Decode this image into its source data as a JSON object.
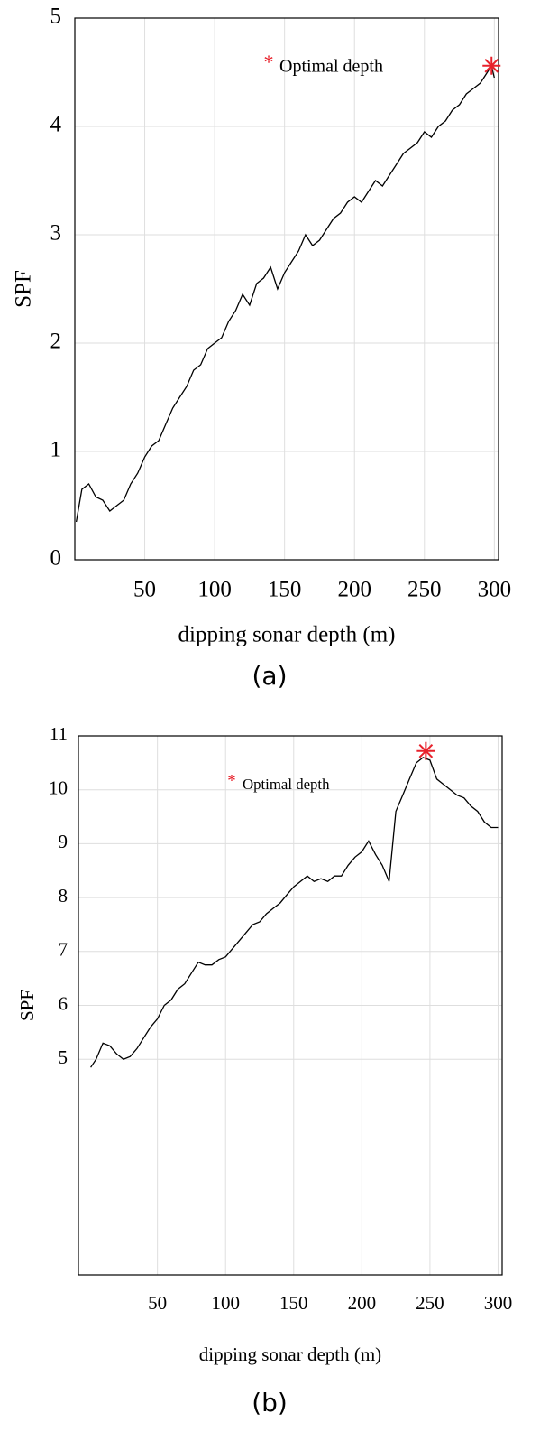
{
  "chart_data": [
    {
      "type": "line",
      "panel": "(a)",
      "xlabel": "dipping sonar depth (m)",
      "ylabel": "SPF",
      "grid": true,
      "xlim": [
        0,
        303
      ],
      "xticks": [
        50,
        100,
        150,
        200,
        250,
        300
      ],
      "ylim": [
        0,
        5
      ],
      "yticks": [
        0,
        1,
        2,
        3,
        4,
        5
      ],
      "legend": "upper right",
      "series": [
        {
          "name": "SPF",
          "color": "#000000",
          "x": [
            1,
            5,
            10,
            15,
            20,
            25,
            30,
            35,
            40,
            45,
            50,
            55,
            60,
            65,
            70,
            75,
            80,
            85,
            90,
            95,
            100,
            105,
            110,
            115,
            120,
            125,
            130,
            135,
            140,
            145,
            150,
            155,
            160,
            165,
            170,
            175,
            180,
            185,
            190,
            195,
            200,
            205,
            210,
            215,
            220,
            225,
            230,
            235,
            240,
            245,
            250,
            255,
            260,
            265,
            270,
            275,
            280,
            285,
            290,
            295,
            298,
            300
          ],
          "values": [
            0.35,
            0.65,
            0.7,
            0.58,
            0.55,
            0.45,
            0.5,
            0.55,
            0.7,
            0.8,
            0.95,
            1.05,
            1.1,
            1.25,
            1.4,
            1.5,
            1.6,
            1.75,
            1.8,
            1.95,
            2.0,
            2.05,
            2.2,
            2.3,
            2.45,
            2.35,
            2.55,
            2.6,
            2.7,
            2.5,
            2.65,
            2.75,
            2.85,
            3.0,
            2.9,
            2.95,
            3.05,
            3.15,
            3.2,
            3.3,
            3.35,
            3.3,
            3.4,
            3.5,
            3.45,
            3.55,
            3.65,
            3.75,
            3.8,
            3.85,
            3.95,
            3.9,
            4.0,
            4.05,
            4.15,
            4.2,
            4.3,
            4.35,
            4.4,
            4.5,
            4.56,
            4.45
          ]
        },
        {
          "name": "Optimal depth",
          "color": "#e8212b",
          "marker": "asterisk",
          "x": [
            298
          ],
          "values": [
            4.56
          ]
        }
      ]
    },
    {
      "type": "line",
      "panel": "(b)",
      "xlabel": "dipping sonar depth (m)",
      "ylabel": "SPF",
      "grid": true,
      "xlim": [
        -8,
        303
      ],
      "xticks": [
        50,
        100,
        150,
        200,
        250,
        300
      ],
      "ylim": [
        1,
        11
      ],
      "yticks": [
        5,
        6,
        7,
        8,
        9,
        10,
        11
      ],
      "legend": "upper center",
      "series": [
        {
          "name": "SPF",
          "color": "#000000",
          "x": [
            1,
            5,
            10,
            15,
            20,
            25,
            30,
            35,
            40,
            45,
            50,
            55,
            60,
            65,
            70,
            75,
            80,
            85,
            90,
            95,
            100,
            105,
            110,
            115,
            120,
            125,
            130,
            135,
            140,
            145,
            150,
            155,
            160,
            165,
            170,
            175,
            180,
            185,
            190,
            195,
            200,
            205,
            210,
            215,
            220,
            225,
            230,
            235,
            240,
            245,
            250,
            255,
            260,
            265,
            270,
            275,
            280,
            285,
            290,
            295,
            300
          ],
          "values": [
            4.85,
            5.0,
            5.3,
            5.25,
            5.1,
            5.0,
            5.05,
            5.2,
            5.4,
            5.6,
            5.75,
            6.0,
            6.1,
            6.3,
            6.4,
            6.6,
            6.8,
            6.75,
            6.75,
            6.85,
            6.9,
            7.05,
            7.2,
            7.35,
            7.5,
            7.55,
            7.7,
            7.8,
            7.9,
            8.05,
            8.2,
            8.3,
            8.4,
            8.3,
            8.35,
            8.3,
            8.4,
            8.4,
            8.6,
            8.75,
            8.85,
            9.05,
            8.8,
            8.6,
            8.3,
            9.6,
            9.9,
            10.2,
            10.5,
            10.6,
            10.55,
            10.2,
            10.1,
            10.0,
            9.9,
            9.85,
            9.7,
            9.6,
            9.4,
            9.3,
            9.3
          ]
        },
        {
          "name": "Optimal depth",
          "color": "#e8212b",
          "marker": "asterisk",
          "x": [
            247
          ],
          "values": [
            10.72
          ]
        }
      ]
    }
  ]
}
